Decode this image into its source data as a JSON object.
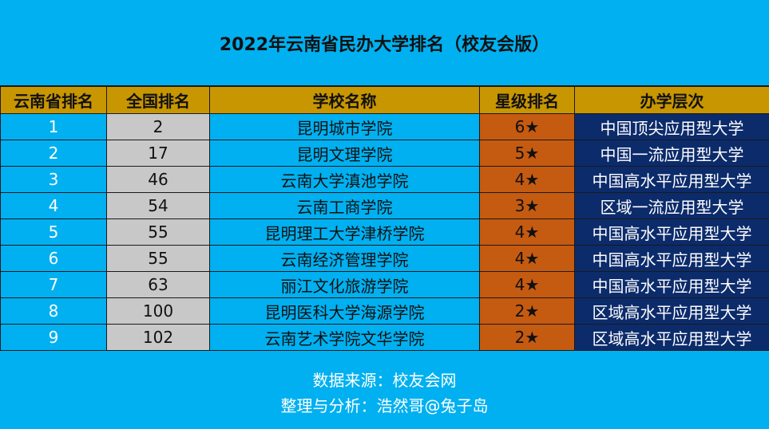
{
  "title": "2022年云南省民办大学排名（校友会版）",
  "headers": [
    "云南省排名",
    "全国排名",
    "学校名称",
    "星级排名",
    "办学层次"
  ],
  "rows": [
    {
      "yn": "1",
      "nat": "2",
      "school": "昆明城市学院",
      "star": "6★",
      "level": "中国顶尖应用型大学"
    },
    {
      "yn": "2",
      "nat": "17",
      "school": "昆明文理学院",
      "star": "5★",
      "level": "中国一流应用型大学"
    },
    {
      "yn": "3",
      "nat": "46",
      "school": "云南大学滇池学院",
      "star": "4★",
      "level": "中国高水平应用型大学"
    },
    {
      "yn": "4",
      "nat": "54",
      "school": "云南工商学院",
      "star": "3★",
      "level": "区域一流应用型大学"
    },
    {
      "yn": "5",
      "nat": "55",
      "school": "昆明理工大学津桥学院",
      "star": "4★",
      "level": "中国高水平应用型大学"
    },
    {
      "yn": "6",
      "nat": "55",
      "school": "云南经济管理学院",
      "star": "4★",
      "level": "中国高水平应用型大学"
    },
    {
      "yn": "7",
      "nat": "63",
      "school": "丽江文化旅游学院",
      "star": "4★",
      "level": "中国高水平应用型大学"
    },
    {
      "yn": "8",
      "nat": "100",
      "school": "昆明医科大学海源学院",
      "star": "2★",
      "level": "区域高水平应用型大学"
    },
    {
      "yn": "9",
      "nat": "102",
      "school": "云南艺术学院文华学院",
      "star": "2★",
      "level": "区域高水平应用型大学"
    }
  ],
  "footer": {
    "source": "数据来源：校友会网",
    "author": "整理与分析：浩然哥@兔子岛"
  }
}
